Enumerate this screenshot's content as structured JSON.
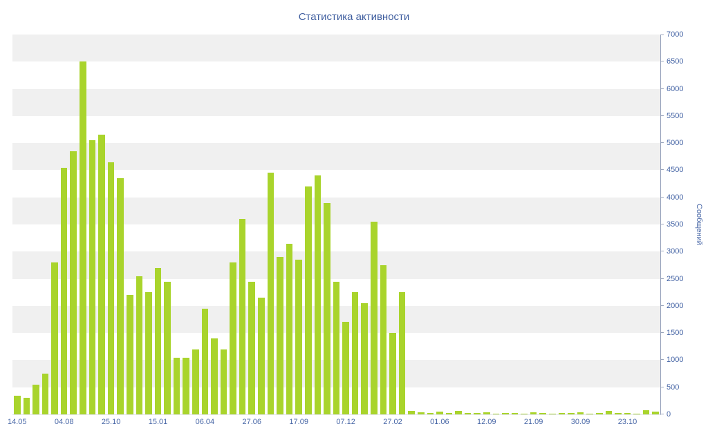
{
  "chart_data": {
    "type": "bar",
    "title": "Статистика активности",
    "ylabel": "Сообщений",
    "xlabel": "",
    "ylim": [
      0,
      7000
    ],
    "ytick_step": 500,
    "ytick_labels": [
      "0",
      "500",
      "1000",
      "1500",
      "2000",
      "2500",
      "3000",
      "3500",
      "4000",
      "4500",
      "5000",
      "5500",
      "6000",
      "6500",
      "7000"
    ],
    "x_tick_labels": [
      "14.05",
      "04.08",
      "25.10",
      "15.01",
      "06.04",
      "27.06",
      "17.09",
      "07.12",
      "27.02",
      "01.06",
      "12.09",
      "21.09",
      "30.09",
      "23.10"
    ],
    "label_every": 5,
    "grid": "horizontal-banded",
    "legend_position": "none",
    "bar_color": "#a9d42c",
    "band_color": "#f0f0f0",
    "axis_text_color": "#4766a6",
    "title_color": "#3d5c9e",
    "values": [
      350,
      300,
      550,
      750,
      2800,
      4550,
      4850,
      6500,
      5050,
      5150,
      4650,
      4350,
      2200,
      2550,
      2250,
      2700,
      2450,
      1050,
      1050,
      1200,
      1950,
      1400,
      1200,
      2800,
      3600,
      2450,
      2150,
      4450,
      2900,
      3150,
      2850,
      4200,
      4400,
      3900,
      2450,
      1700,
      2250,
      2050,
      3550,
      2750,
      1500,
      2250,
      60,
      40,
      30,
      50,
      20,
      60,
      30,
      20,
      40,
      10,
      20,
      30,
      10,
      40,
      20,
      10,
      30,
      20,
      40,
      10,
      30,
      60,
      20,
      30,
      10,
      80,
      50
    ]
  }
}
